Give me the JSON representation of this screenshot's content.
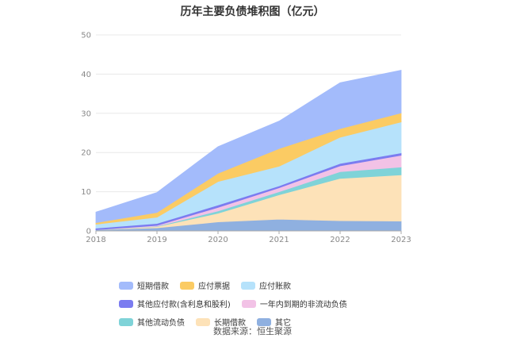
{
  "chart_data": {
    "type": "area",
    "stacked": true,
    "title": "历年主要负债堆积图（亿元）",
    "x": [
      "2018",
      "2019",
      "2020",
      "2021",
      "2022",
      "2023"
    ],
    "ylim": [
      0,
      50
    ],
    "yticks": [
      0,
      10,
      20,
      30,
      40,
      50
    ],
    "grid": true,
    "legend_position": "bottom",
    "series": [
      {
        "name": "其它",
        "color": "#8fb0e0",
        "values": [
          0.3,
          0.8,
          2.3,
          3.0,
          2.6,
          2.5
        ]
      },
      {
        "name": "长期借款",
        "color": "#fde2b8",
        "values": [
          0,
          0.3,
          2.2,
          6.2,
          10.8,
          11.8
        ]
      },
      {
        "name": "其他流动负债",
        "color": "#7fd3d8",
        "values": [
          0,
          0.1,
          0.6,
          0.8,
          1.7,
          2.0
        ]
      },
      {
        "name": "一年内到期的非流动负债",
        "color": "#f2c2e6",
        "values": [
          0,
          0.2,
          0.9,
          1.0,
          1.5,
          3.0
        ]
      },
      {
        "name": "其他应付款(含利息和股利)",
        "color": "#7b7cf0",
        "values": [
          0.4,
          0.5,
          0.6,
          0.5,
          0.6,
          0.6
        ]
      },
      {
        "name": "应付账款",
        "color": "#b6e2fb",
        "values": [
          1.0,
          1.6,
          6.0,
          5.0,
          6.7,
          7.9
        ]
      },
      {
        "name": "应付票据",
        "color": "#fbcb63",
        "values": [
          0.4,
          1.2,
          2.1,
          4.5,
          2.2,
          2.3
        ]
      },
      {
        "name": "短期借款",
        "color": "#a3bbfb",
        "values": [
          2.7,
          5.1,
          6.8,
          7.0,
          11.7,
          10.9
        ]
      }
    ],
    "legend_order": [
      "短期借款",
      "应付票据",
      "应付账款",
      "其他应付款(含利息和股利)",
      "一年内到期的非流动负债",
      "其他流动负债",
      "长期借款",
      "其它"
    ]
  },
  "footer": {
    "source": "数据来源：恒生聚源"
  }
}
